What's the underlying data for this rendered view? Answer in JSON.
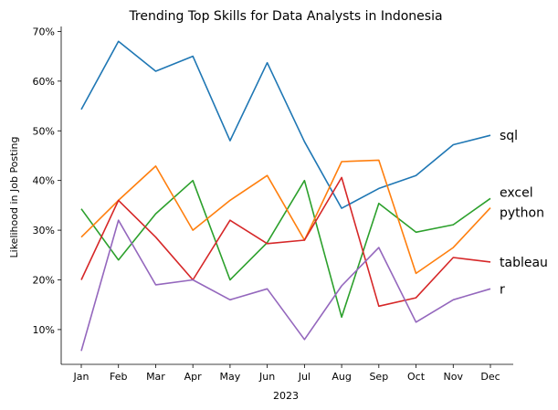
{
  "chart_data": {
    "type": "line",
    "title": "Trending Top Skills for Data Analysts in Indonesia",
    "xlabel": "2023",
    "ylabel": "Likelihood in Job Posting",
    "categories": [
      "Jan",
      "Feb",
      "Mar",
      "Apr",
      "May",
      "Jun",
      "Jul",
      "Aug",
      "Sep",
      "Oct",
      "Nov",
      "Dec"
    ],
    "ylim": [
      3,
      71
    ],
    "yticks": [
      10,
      20,
      30,
      40,
      50,
      60,
      70
    ],
    "ytick_labels": [
      "10%",
      "20%",
      "30%",
      "40%",
      "50%",
      "60%",
      "70%"
    ],
    "grid": false,
    "legend": "inline labels at right end of each line",
    "series": [
      {
        "name": "sql",
        "color": "#1f77b4",
        "values": [
          54.3,
          68.0,
          62.0,
          65.0,
          48.0,
          63.7,
          47.8,
          34.4,
          38.4,
          41.0,
          47.2,
          49.1
        ]
      },
      {
        "name": "excel",
        "color": "#2ca02c",
        "values": [
          34.3,
          24.0,
          33.3,
          40.0,
          20.0,
          27.5,
          40.0,
          12.5,
          35.4,
          29.6,
          31.1,
          36.4
        ]
      },
      {
        "name": "python",
        "color": "#ff7f0e",
        "values": [
          28.6,
          36.0,
          42.9,
          30.0,
          36.0,
          41.0,
          28.0,
          43.8,
          44.1,
          21.3,
          26.5,
          34.5
        ]
      },
      {
        "name": "tableau",
        "color": "#d62728",
        "values": [
          20.0,
          36.0,
          28.6,
          20.0,
          32.0,
          27.3,
          28.0,
          40.6,
          14.7,
          16.4,
          24.5,
          23.6
        ]
      },
      {
        "name": "r",
        "color": "#9467bd",
        "values": [
          5.7,
          32.0,
          19.0,
          20.0,
          16.0,
          18.2,
          8.0,
          18.8,
          26.5,
          11.5,
          16.0,
          18.2
        ]
      }
    ]
  }
}
